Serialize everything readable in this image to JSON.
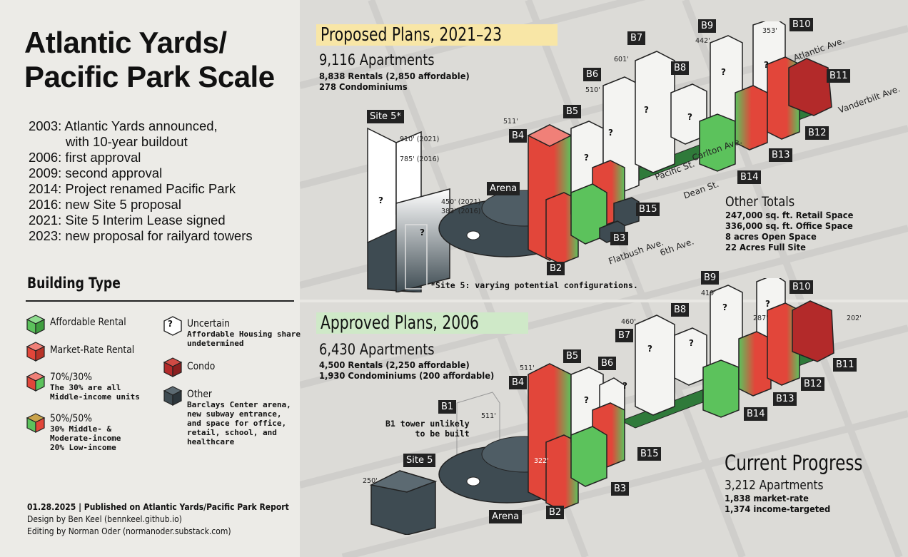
{
  "title_line1": "Atlantic Yards/",
  "title_line2": "Pacific Park Scale",
  "timeline": [
    "2003: Atlantic Yards announced,",
    "with 10-year buildout",
    "2006: first approval",
    "2009: second approval",
    "2014: Project renamed Pacific Park",
    "2016: new Site 5 proposal",
    "2021: Site 5 Interim Lease signed",
    "2023: new proposal for railyard towers"
  ],
  "building_type": {
    "heading": "Building Type",
    "affordable": "Affordable Rental",
    "market": "Market-Rate Rental",
    "split7030": "70%/30%",
    "split7030_sub1": "The 30% are all",
    "split7030_sub2": "Middle-income units",
    "split5050": "50%/50%",
    "split5050_sub1": "30% Middle- &",
    "split5050_sub2": "Moderate-income",
    "split5050_sub3": "20% Low-income",
    "uncertain": "Uncertain",
    "uncertain_sub1": "Affordable Housing share",
    "uncertain_sub2": "undetermined",
    "condo": "Condo",
    "other": "Other",
    "other_sub1": "Barclays Center arena,",
    "other_sub2": "new subway entrance,",
    "other_sub3": "and space for office,",
    "other_sub4": "retail, school, and",
    "other_sub5": "healthcare",
    "uncertain_glyph": "?"
  },
  "credits": {
    "line1": "01.28.2025 | Published on Atlantic Yards/Pacific Park Report",
    "line2": "Design by Ben Keel (bennkeel.github.io)",
    "line3": "Editing by Norman Oder (normanoder.substack.com)"
  },
  "proposed": {
    "header": "Proposed Plans, 2021–23",
    "apartments": "9,116 Apartments",
    "rentals": "8,838 Rentals (2,850 affordable)",
    "condos": "278 Condominiums",
    "site5_label": "Site 5*",
    "h910": "910' (2021)",
    "h785": "785' (2016)",
    "h450": "450' (2021)",
    "h383": "383' (2016)",
    "note": "*Site 5: varying potential configurations.",
    "labels": {
      "B2": "B2",
      "B3": "B3",
      "B4": "B4",
      "B5": "B5",
      "B6": "B6",
      "B7": "B7",
      "B8": "B8",
      "B9": "B9",
      "B10": "B10",
      "B11": "B11",
      "B12": "B12",
      "B13": "B13",
      "B14": "B14",
      "B15": "B15",
      "Arena": "Arena"
    },
    "heights": {
      "b4": "511'",
      "b6": "510'",
      "b7": "601'",
      "b9": "442'",
      "b10": "353'"
    }
  },
  "streets": {
    "atlantic": "Atlantic Ave.",
    "vanderbilt": "Vanderbilt Ave.",
    "carlton": "Carlton Ave.",
    "pacific": "Pacific St.",
    "dean": "Dean St.",
    "sixth": "6th Ave.",
    "flatbush": "Flatbush Ave."
  },
  "other_totals": {
    "heading": "Other Totals",
    "retail": "247,000 sq. ft. Retail Space",
    "office": "336,000 sq. ft. Office Space",
    "open": "8 acres Open Space",
    "full": "22 Acres Full Site"
  },
  "approved": {
    "header": "Approved Plans, 2006",
    "apartments": "6,430 Apartments",
    "rentals": "4,500 Rentals (2,250 affordable)",
    "condos": "1,930 Condominiums (200 affordable)",
    "b1": "B1",
    "b1_note1": "B1 tower unlikely",
    "b1_note2": "to be built",
    "h511_b1": "511'",
    "site5": "Site 5",
    "h250": "250'",
    "h322": "322'",
    "labels": {
      "B2": "B2",
      "B3": "B3",
      "B4": "B4",
      "B5": "B5",
      "B6": "B6",
      "B7": "B7",
      "B8": "B8",
      "B9": "B9",
      "B10": "B10",
      "B11": "B11",
      "B12": "B12",
      "B13": "B13",
      "B14": "B14",
      "B15": "B15",
      "Arena": "Arena"
    },
    "heights": {
      "b4": "511'",
      "b7": "460'",
      "b9": "419'",
      "b10": "287'",
      "b11": "202'"
    }
  },
  "progress": {
    "heading": "Current Progress",
    "apartments": "3,212 Apartments",
    "market": "1,838 market-rate",
    "income": "1,374 income-targeted"
  },
  "colors": {
    "affordable": "#5cc25c",
    "market": "#e2463a",
    "condo": "#b32a2a",
    "other": "#3e4b52",
    "header_proposed": "#f8e6a6",
    "header_approved": "#cfe9c8"
  }
}
